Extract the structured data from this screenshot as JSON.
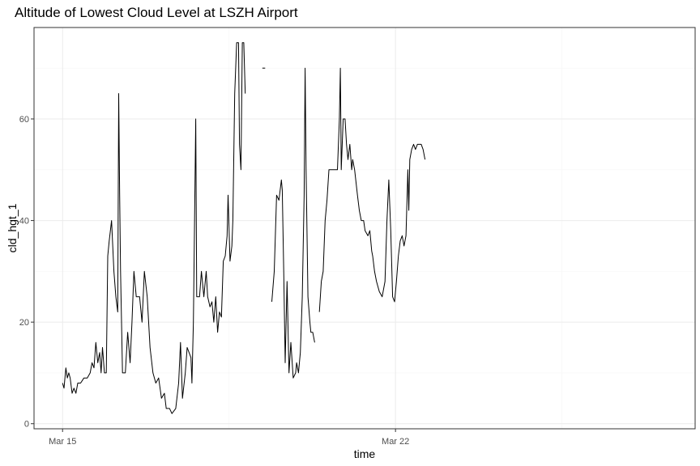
{
  "chart_data": {
    "type": "line",
    "title": "Altitude of Lowest Cloud Level at LSZH Airport",
    "xlabel": "time",
    "ylabel": "cld_hgt_1",
    "x_range_days": [
      -0.6,
      13.3
    ],
    "x_ticks": [
      {
        "day": 0,
        "label": "Mar 15"
      },
      {
        "day": 7,
        "label": "Mar 22"
      }
    ],
    "ylim": [
      -1,
      78
    ],
    "y_ticks": [
      0,
      20,
      40,
      60
    ],
    "grid": true,
    "colors": {
      "line": "#000000",
      "grid_major": "#ebebeb",
      "grid_minor": "#f5f5f5",
      "panel_border": "#333333"
    },
    "series": [
      {
        "segments": [
          [
            [
              0,
              8
            ],
            [
              0.03,
              7
            ],
            [
              0.07,
              11
            ],
            [
              0.1,
              9
            ],
            [
              0.13,
              10
            ],
            [
              0.16,
              9
            ],
            [
              0.2,
              6
            ],
            [
              0.24,
              7
            ],
            [
              0.28,
              6
            ],
            [
              0.32,
              8
            ],
            [
              0.38,
              8
            ],
            [
              0.45,
              9
            ],
            [
              0.52,
              9
            ],
            [
              0.58,
              10
            ],
            [
              0.62,
              12
            ],
            [
              0.66,
              11
            ],
            [
              0.7,
              16
            ],
            [
              0.74,
              12
            ],
            [
              0.78,
              14
            ],
            [
              0.81,
              10
            ],
            [
              0.84,
              15
            ],
            [
              0.88,
              10
            ],
            [
              0.92,
              10
            ],
            [
              0.95,
              33
            ],
            [
              0.98,
              36
            ],
            [
              1.03,
              40
            ],
            [
              1.08,
              30
            ],
            [
              1.12,
              25
            ],
            [
              1.16,
              22
            ],
            [
              1.18,
              65
            ],
            [
              1.2,
              45
            ],
            [
              1.22,
              30
            ],
            [
              1.26,
              10
            ],
            [
              1.32,
              10
            ],
            [
              1.37,
              18
            ],
            [
              1.42,
              12
            ],
            [
              1.46,
              20
            ],
            [
              1.5,
              30
            ],
            [
              1.55,
              25
            ],
            [
              1.62,
              25
            ],
            [
              1.67,
              20
            ],
            [
              1.72,
              30
            ],
            [
              1.78,
              25
            ],
            [
              1.84,
              15
            ],
            [
              1.9,
              10
            ],
            [
              1.96,
              8
            ],
            [
              2.02,
              9
            ],
            [
              2.08,
              5
            ],
            [
              2.14,
              6
            ],
            [
              2.18,
              3
            ],
            [
              2.25,
              3
            ],
            [
              2.3,
              2
            ],
            [
              2.38,
              3
            ],
            [
              2.44,
              8
            ],
            [
              2.48,
              16
            ],
            [
              2.52,
              5
            ],
            [
              2.58,
              10
            ],
            [
              2.62,
              15
            ],
            [
              2.66,
              14
            ],
            [
              2.7,
              13
            ],
            [
              2.72,
              8
            ],
            [
              2.75,
              20
            ],
            [
              2.8,
              60
            ],
            [
              2.82,
              25
            ],
            [
              2.88,
              25
            ],
            [
              2.92,
              30
            ],
            [
              2.97,
              25
            ],
            [
              3.02,
              30
            ],
            [
              3.05,
              25
            ],
            [
              3.1,
              23
            ],
            [
              3.14,
              24
            ],
            [
              3.18,
              20
            ],
            [
              3.22,
              25
            ],
            [
              3.26,
              18
            ],
            [
              3.3,
              22
            ],
            [
              3.34,
              21
            ],
            [
              3.38,
              32
            ],
            [
              3.42,
              33
            ],
            [
              3.46,
              37
            ],
            [
              3.48,
              45
            ],
            [
              3.52,
              32
            ],
            [
              3.56,
              35
            ],
            [
              3.58,
              40
            ],
            [
              3.62,
              65
            ],
            [
              3.66,
              75
            ],
            [
              3.7,
              75
            ],
            [
              3.72,
              55
            ],
            [
              3.75,
              50
            ],
            [
              3.78,
              75
            ],
            [
              3.81,
              75
            ],
            [
              3.84,
              65
            ]
          ],
          [
            [
              4.2,
              70
            ],
            [
              4.26,
              70
            ]
          ],
          [
            [
              4.4,
              24
            ],
            [
              4.45,
              30
            ],
            [
              4.5,
              45
            ],
            [
              4.55,
              44
            ],
            [
              4.6,
              48
            ],
            [
              4.62,
              46
            ],
            [
              4.65,
              30
            ],
            [
              4.68,
              12
            ],
            [
              4.72,
              28
            ],
            [
              4.76,
              10
            ],
            [
              4.8,
              16
            ],
            [
              4.85,
              9
            ],
            [
              4.9,
              10
            ],
            [
              4.92,
              12
            ],
            [
              4.96,
              10
            ],
            [
              5.0,
              14
            ],
            [
              5.04,
              25
            ],
            [
              5.08,
              45
            ],
            [
              5.1,
              70
            ],
            [
              5.12,
              50
            ],
            [
              5.16,
              25
            ],
            [
              5.2,
              20
            ],
            [
              5.22,
              18
            ],
            [
              5.26,
              18
            ],
            [
              5.3,
              16
            ]
          ],
          [
            [
              5.4,
              22
            ],
            [
              5.44,
              28
            ],
            [
              5.48,
              30
            ],
            [
              5.52,
              40
            ],
            [
              5.56,
              44
            ],
            [
              5.6,
              50
            ],
            [
              5.66,
              50
            ],
            [
              5.72,
              50
            ],
            [
              5.78,
              50
            ],
            [
              5.82,
              60
            ],
            [
              5.84,
              70
            ],
            [
              5.86,
              50
            ],
            [
              5.9,
              60
            ],
            [
              5.94,
              60
            ],
            [
              5.97,
              55
            ],
            [
              6.0,
              52
            ],
            [
              6.04,
              55
            ],
            [
              6.08,
              50
            ],
            [
              6.1,
              52
            ],
            [
              6.14,
              50
            ],
            [
              6.2,
              45
            ],
            [
              6.24,
              42
            ],
            [
              6.28,
              40
            ],
            [
              6.33,
              40
            ],
            [
              6.36,
              38
            ],
            [
              6.42,
              37
            ],
            [
              6.46,
              38
            ],
            [
              6.5,
              34
            ],
            [
              6.52,
              33
            ],
            [
              6.56,
              30
            ],
            [
              6.6,
              28
            ],
            [
              6.66,
              26
            ],
            [
              6.72,
              25
            ],
            [
              6.78,
              28
            ],
            [
              6.82,
              40
            ],
            [
              6.86,
              48
            ],
            [
              6.9,
              38
            ],
            [
              6.94,
              25
            ],
            [
              6.98,
              24
            ],
            [
              7.02,
              28
            ],
            [
              7.06,
              33
            ],
            [
              7.1,
              36
            ],
            [
              7.14,
              37
            ],
            [
              7.18,
              35
            ],
            [
              7.22,
              37
            ],
            [
              7.26,
              50
            ],
            [
              7.28,
              42
            ],
            [
              7.3,
              52
            ],
            [
              7.34,
              54
            ],
            [
              7.38,
              55
            ],
            [
              7.42,
              54
            ],
            [
              7.46,
              55
            ],
            [
              7.5,
              55
            ],
            [
              7.54,
              55
            ],
            [
              7.58,
              54
            ],
            [
              7.62,
              52
            ]
          ]
        ]
      }
    ]
  }
}
